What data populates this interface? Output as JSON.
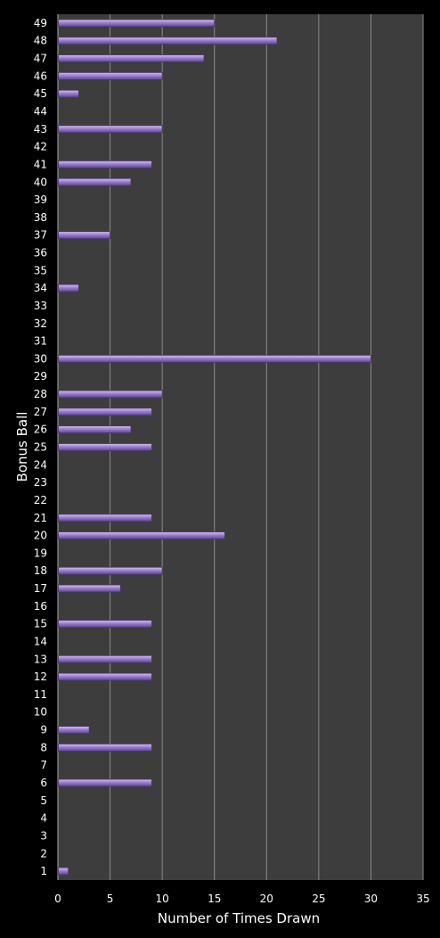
{
  "chart_data": {
    "type": "bar",
    "orientation": "horizontal",
    "title": "",
    "xlabel": "Number of Times Drawn",
    "ylabel": "Bonus Ball",
    "xlim": [
      0,
      35
    ],
    "xticks": [
      "0",
      "5",
      "10",
      "15",
      "20",
      "25",
      "30",
      "35"
    ],
    "grid": "vertical",
    "legend": "none",
    "categories": [
      "1",
      "2",
      "3",
      "4",
      "5",
      "6",
      "7",
      "8",
      "9",
      "10",
      "11",
      "12",
      "13",
      "14",
      "15",
      "16",
      "17",
      "18",
      "19",
      "20",
      "21",
      "22",
      "23",
      "24",
      "25",
      "26",
      "27",
      "28",
      "29",
      "30",
      "31",
      "32",
      "33",
      "34",
      "35",
      "36",
      "37",
      "38",
      "39",
      "40",
      "41",
      "42",
      "43",
      "44",
      "45",
      "46",
      "47",
      "48",
      "49"
    ],
    "values": [
      1,
      0,
      0,
      0,
      0,
      9,
      0,
      9,
      3,
      0,
      0,
      9,
      9,
      0,
      9,
      0,
      6,
      10,
      0,
      16,
      9,
      0,
      0,
      0,
      9,
      7,
      9,
      10,
      0,
      30,
      0,
      0,
      0,
      2,
      0,
      0,
      5,
      0,
      0,
      7,
      9,
      0,
      10,
      0,
      2,
      10,
      14,
      21,
      15
    ],
    "colors": {
      "background": "#000000",
      "plot_area": "#3d3d3d",
      "gridline": "#8a8a8a",
      "bar_fill": "#9b7fcf",
      "bar_edge": "#4a3470",
      "text": "#ffffff"
    }
  }
}
